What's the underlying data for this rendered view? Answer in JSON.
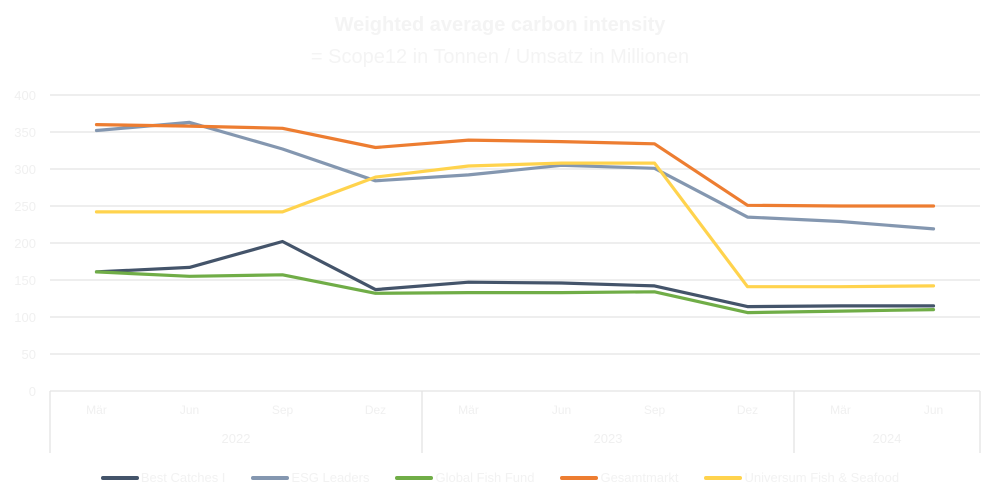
{
  "chart_data": {
    "type": "line",
    "title": "Weighted average carbon intensity",
    "subtitle": "= Scope12 in Tonnen / Umsatz in Millionen",
    "xlabel": "",
    "ylabel": "",
    "ylim": [
      0,
      400
    ],
    "yticks": [
      0,
      50,
      100,
      150,
      200,
      250,
      300,
      350,
      400
    ],
    "grid": true,
    "legend_position": "bottom",
    "categories": [
      "Mär",
      "Jun",
      "Sep",
      "Dez",
      "Mär",
      "Jun",
      "Sep",
      "Dez",
      "Mär",
      "Jun"
    ],
    "category_groups": [
      {
        "label": "2022",
        "count": 4
      },
      {
        "label": "2023",
        "count": 4
      },
      {
        "label": "2024",
        "count": 2
      }
    ],
    "series": [
      {
        "name": "Best Catches I",
        "color": "#44546a",
        "values": [
          161,
          167,
          202,
          137,
          147,
          146,
          142,
          114,
          115,
          115
        ]
      },
      {
        "name": "ESG Leaders",
        "color": "#8497b0",
        "values": [
          352,
          363,
          327,
          284,
          292,
          305,
          301,
          235,
          229,
          219
        ]
      },
      {
        "name": "Global Fish Fund",
        "color": "#70ad47",
        "values": [
          161,
          155,
          157,
          132,
          133,
          133,
          134,
          106,
          108,
          110
        ]
      },
      {
        "name": "Gesamtmarkt",
        "color": "#ed7d31",
        "values": [
          360,
          358,
          355,
          329,
          339,
          337,
          334,
          251,
          250,
          250
        ]
      },
      {
        "name": "Universum Fish & Seafood",
        "color": "#ffd34d",
        "values": [
          242,
          242,
          242,
          289,
          304,
          308,
          308,
          141,
          141,
          142
        ]
      }
    ]
  },
  "colors": {
    "text": "#f2f2f2",
    "gridline": "#e3e3e3"
  }
}
